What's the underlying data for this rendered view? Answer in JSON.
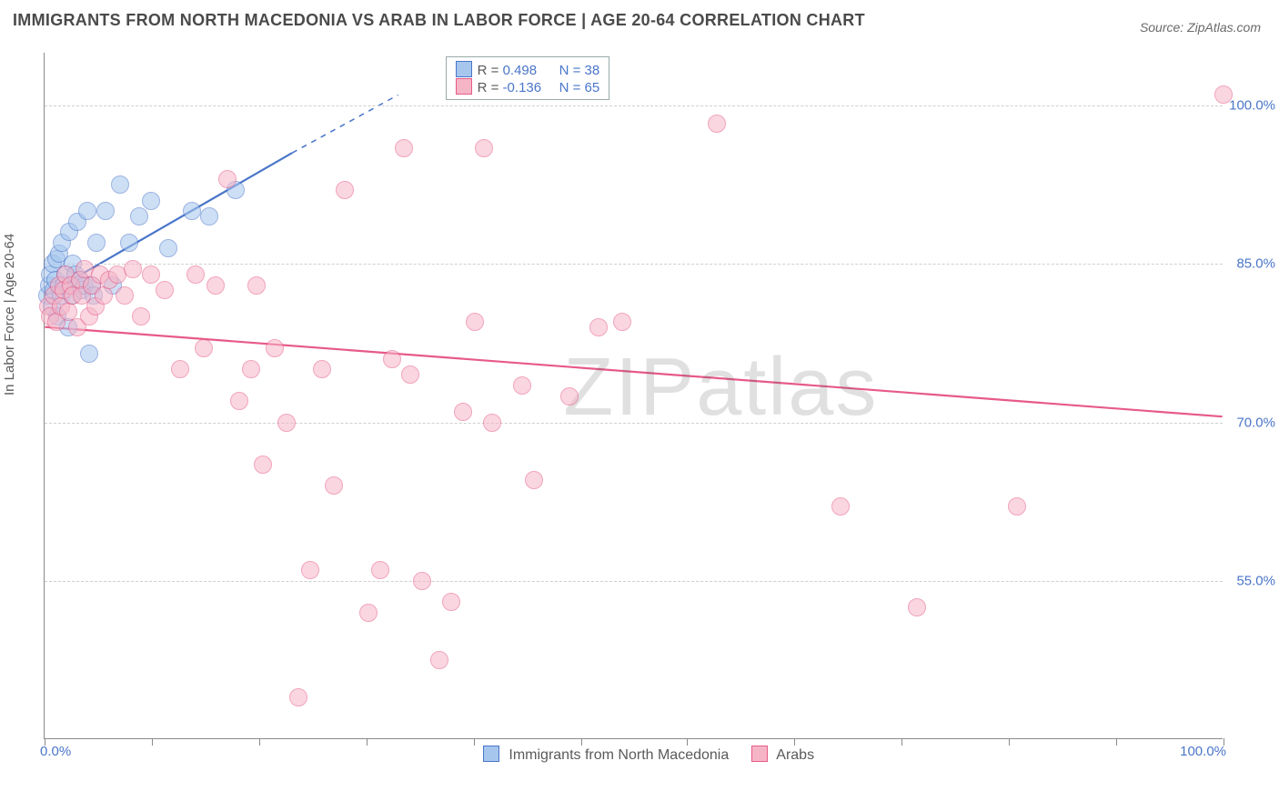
{
  "title": "IMMIGRANTS FROM NORTH MACEDONIA VS ARAB IN LABOR FORCE | AGE 20-64 CORRELATION CHART",
  "source_label": "Source: ZipAtlas.com",
  "y_axis_label": "In Labor Force | Age 20-64",
  "watermark": "ZIPatlas",
  "chart": {
    "type": "scatter",
    "xlim": [
      0,
      100
    ],
    "ylim": [
      40,
      105
    ],
    "y_ticks": [
      55,
      70,
      85,
      100
    ],
    "y_tick_labels": [
      "55.0%",
      "70.0%",
      "85.0%",
      "100.0%"
    ],
    "x_tick_positions": [
      0,
      9.1,
      18.2,
      27.3,
      36.4,
      45.5,
      54.5,
      63.6,
      72.7,
      81.8,
      90.9,
      100
    ],
    "x_min_label": "0.0%",
    "x_max_label": "100.0%",
    "grid_color": "#cfcfcf",
    "background_color": "#ffffff",
    "marker_radius": 9,
    "series": [
      {
        "name": "Immigrants from North Macedonia",
        "short": "north-macedonia",
        "fill": "#a6c6ee",
        "stroke": "#4a76c9",
        "fill_opacity": 0.55,
        "R": "0.498",
        "N": "38",
        "trend": {
          "x1": 0,
          "y1": 82,
          "x2_solid": 21,
          "y2_solid": 95.5,
          "x2_dash": 30,
          "y2_dash": 101,
          "stroke_width": 2.2
        },
        "points": [
          [
            0.2,
            82
          ],
          [
            0.4,
            83
          ],
          [
            0.5,
            84
          ],
          [
            0.6,
            81
          ],
          [
            0.7,
            85
          ],
          [
            0.8,
            82.5
          ],
          [
            0.9,
            83.5
          ],
          [
            1.0,
            85.5
          ],
          [
            1.1,
            80
          ],
          [
            1.2,
            86
          ],
          [
            1.4,
            82
          ],
          [
            1.5,
            87
          ],
          [
            1.6,
            83
          ],
          [
            1.8,
            84
          ],
          [
            2.0,
            79
          ],
          [
            2.1,
            88
          ],
          [
            2.3,
            82
          ],
          [
            2.4,
            85
          ],
          [
            2.6,
            84
          ],
          [
            2.8,
            89
          ],
          [
            3.0,
            83.5
          ],
          [
            3.2,
            82.5
          ],
          [
            3.4,
            83
          ],
          [
            3.6,
            90
          ],
          [
            3.8,
            76.5
          ],
          [
            4.0,
            83
          ],
          [
            4.2,
            82
          ],
          [
            4.4,
            87
          ],
          [
            5.2,
            90
          ],
          [
            5.8,
            83
          ],
          [
            6.4,
            92.5
          ],
          [
            7.2,
            87
          ],
          [
            8.0,
            89.5
          ],
          [
            9.0,
            91
          ],
          [
            10.5,
            86.5
          ],
          [
            12.5,
            90
          ],
          [
            14.0,
            89.5
          ],
          [
            16.2,
            92
          ]
        ]
      },
      {
        "name": "Arabs",
        "short": "arabs",
        "fill": "#f6b5c7",
        "stroke": "#e75a87",
        "fill_opacity": 0.55,
        "R": "-0.136",
        "N": "65",
        "trend": {
          "x1": 0,
          "y1": 79,
          "x2_solid": 100,
          "y2_solid": 70.5,
          "stroke_width": 2.2
        },
        "points": [
          [
            0.3,
            81
          ],
          [
            0.5,
            80
          ],
          [
            0.8,
            82
          ],
          [
            1.0,
            79.5
          ],
          [
            1.2,
            83
          ],
          [
            1.4,
            81
          ],
          [
            1.6,
            82.5
          ],
          [
            1.8,
            84
          ],
          [
            2.0,
            80.5
          ],
          [
            2.2,
            83
          ],
          [
            2.4,
            82
          ],
          [
            2.8,
            79
          ],
          [
            3.0,
            83.5
          ],
          [
            3.2,
            82
          ],
          [
            3.4,
            84.5
          ],
          [
            3.8,
            80
          ],
          [
            4.0,
            83
          ],
          [
            4.3,
            81
          ],
          [
            4.7,
            84
          ],
          [
            5.0,
            82
          ],
          [
            5.5,
            83.5
          ],
          [
            6.2,
            84
          ],
          [
            6.8,
            82
          ],
          [
            7.5,
            84.5
          ],
          [
            8.2,
            80
          ],
          [
            9.0,
            84
          ],
          [
            10.2,
            82.5
          ],
          [
            11.5,
            75
          ],
          [
            12.8,
            84
          ],
          [
            13.5,
            77
          ],
          [
            14.5,
            83
          ],
          [
            15.5,
            93
          ],
          [
            16.5,
            72
          ],
          [
            17.5,
            75
          ],
          [
            18.5,
            66
          ],
          [
            18.0,
            83
          ],
          [
            19.5,
            77
          ],
          [
            20.5,
            70
          ],
          [
            21.5,
            44
          ],
          [
            22.5,
            56
          ],
          [
            23.5,
            75
          ],
          [
            24.5,
            64
          ],
          [
            25.5,
            92
          ],
          [
            27.5,
            52
          ],
          [
            28.5,
            56
          ],
          [
            29.5,
            76
          ],
          [
            30.5,
            96
          ],
          [
            31.0,
            74.5
          ],
          [
            32.0,
            55
          ],
          [
            33.5,
            47.5
          ],
          [
            34.5,
            53
          ],
          [
            35.5,
            71
          ],
          [
            36.5,
            79.5
          ],
          [
            37.3,
            96
          ],
          [
            38.0,
            70
          ],
          [
            40.5,
            73.5
          ],
          [
            41.5,
            64.5
          ],
          [
            44.5,
            72.5
          ],
          [
            47.0,
            79
          ],
          [
            49.0,
            79.5
          ],
          [
            57.0,
            98.3
          ],
          [
            67.5,
            62
          ],
          [
            74.0,
            52.5
          ],
          [
            82.5,
            62
          ],
          [
            100.0,
            101
          ]
        ]
      }
    ]
  },
  "bottom_legend": {
    "series1_label": "Immigrants from North Macedonia",
    "series2_label": "Arabs"
  },
  "top_legend": {
    "r_prefix": "R = ",
    "n_prefix": "N = "
  }
}
